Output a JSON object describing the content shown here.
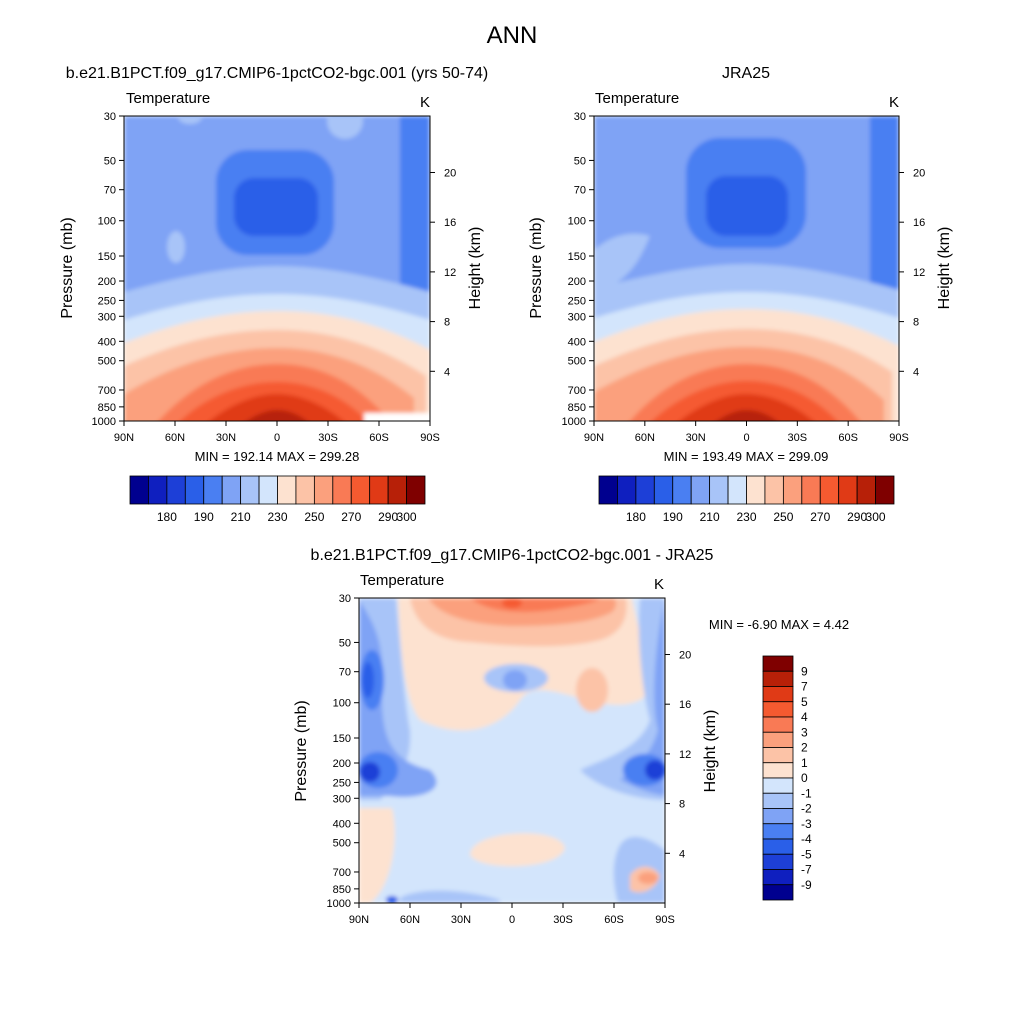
{
  "page_title": "ANN",
  "colors": {
    "temp_levels": [
      "#00008f",
      "#0f1fbf",
      "#1d3fd7",
      "#2a5fe8",
      "#4a7ff2",
      "#7fa3f5",
      "#a8c4f8",
      "#d3e5fc",
      "#fde2d0",
      "#fcc3a7",
      "#fba07d",
      "#f97a55",
      "#f55a30",
      "#e03a16",
      "#b72008",
      "#7f0000"
    ],
    "diff_levels": [
      "#00008f",
      "#0f1fbf",
      "#1d3fd7",
      "#2a5fe8",
      "#4a7ff2",
      "#7fa3f5",
      "#a8c4f8",
      "#d3e5fc",
      "#fde2d0",
      "#fcc3a7",
      "#fba07d",
      "#f97a55",
      "#f55a30",
      "#e03a16",
      "#b72008",
      "#7f0000"
    ]
  },
  "chart_data": [
    {
      "type": "heatmap",
      "title": "b.e21.B1PCT.f09_g17.CMIP6-1pctCO2-bgc.001 (yrs 50-74)",
      "left_label": "Temperature",
      "right_label": "K",
      "xlabel": "",
      "ylabel": "Pressure (mb)",
      "y2label": "Height (km)",
      "x_ticks": [
        "90N",
        "60N",
        "30N",
        "0",
        "30S",
        "60S",
        "90S"
      ],
      "x_tick_values": [
        90,
        60,
        30,
        0,
        -30,
        -60,
        -90
      ],
      "y_ticks": [
        30,
        50,
        70,
        100,
        150,
        200,
        250,
        300,
        400,
        500,
        700,
        850,
        1000
      ],
      "y2_ticks": [
        20,
        16,
        12,
        8,
        4
      ],
      "ylim": [
        30,
        1000
      ],
      "minmax_text": "MIN = 192.14  MAX = 299.28",
      "colorbar": {
        "orientation": "horizontal",
        "labels": [
          "180",
          "190",
          "210",
          "230",
          "250",
          "270",
          "290",
          "300"
        ],
        "n_boxes": 16
      }
    },
    {
      "type": "heatmap",
      "title": "JRA25",
      "left_label": "Temperature",
      "right_label": "K",
      "xlabel": "",
      "ylabel": "Pressure (mb)",
      "y2label": "Height (km)",
      "x_ticks": [
        "90N",
        "60N",
        "30N",
        "0",
        "30S",
        "60S",
        "90S"
      ],
      "x_tick_values": [
        90,
        60,
        30,
        0,
        -30,
        -60,
        -90
      ],
      "y_ticks": [
        30,
        50,
        70,
        100,
        150,
        200,
        250,
        300,
        400,
        500,
        700,
        850,
        1000
      ],
      "y2_ticks": [
        20,
        16,
        12,
        8,
        4
      ],
      "ylim": [
        30,
        1000
      ],
      "minmax_text": "MIN = 193.49  MAX = 299.09",
      "colorbar": {
        "orientation": "horizontal",
        "labels": [
          "180",
          "190",
          "210",
          "230",
          "250",
          "270",
          "290",
          "300"
        ],
        "n_boxes": 16
      }
    },
    {
      "type": "heatmap",
      "title": "b.e21.B1PCT.f09_g17.CMIP6-1pctCO2-bgc.001 - JRA25",
      "left_label": "Temperature",
      "right_label": "K",
      "xlabel": "",
      "ylabel": "Pressure (mb)",
      "y2label": "Height (km)",
      "x_ticks": [
        "90N",
        "60N",
        "30N",
        "0",
        "30S",
        "60S",
        "90S"
      ],
      "x_tick_values": [
        90,
        60,
        30,
        0,
        -30,
        -60,
        -90
      ],
      "y_ticks": [
        30,
        50,
        70,
        100,
        150,
        200,
        250,
        300,
        400,
        500,
        700,
        850,
        1000
      ],
      "y2_ticks": [
        20,
        16,
        12,
        8,
        4
      ],
      "ylim": [
        30,
        1000
      ],
      "minmax_text": "MIN =  -6.90  MAX =   4.42",
      "colorbar": {
        "orientation": "vertical",
        "labels": [
          "9",
          "7",
          "5",
          "4",
          "3",
          "2",
          "1",
          "0",
          "-1",
          "-2",
          "-3",
          "-4",
          "-5",
          "-7",
          "-9"
        ],
        "n_boxes": 16
      }
    }
  ]
}
